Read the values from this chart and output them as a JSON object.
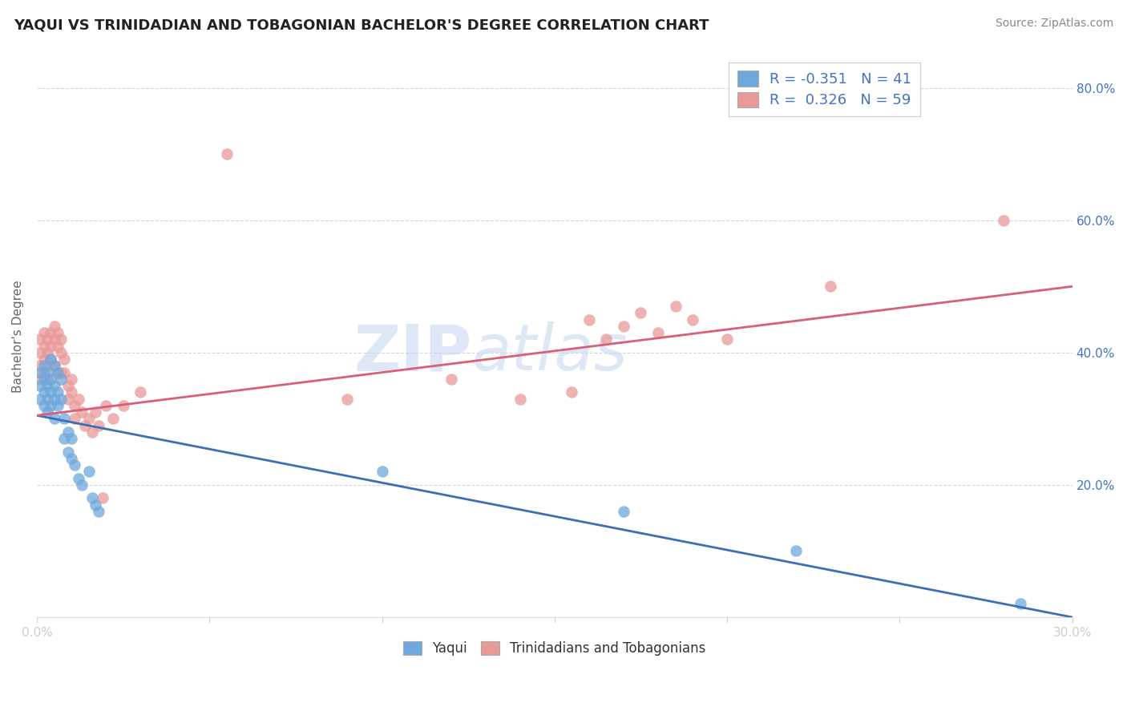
{
  "title": "YAQUI VS TRINIDADIAN AND TOBAGONIAN BACHELOR'S DEGREE CORRELATION CHART",
  "source": "Source: ZipAtlas.com",
  "ylabel": "Bachelor's Degree",
  "xlim": [
    0.0,
    0.3
  ],
  "ylim": [
    0.0,
    0.85
  ],
  "blue_R": -0.351,
  "blue_N": 41,
  "pink_R": 0.326,
  "pink_N": 59,
  "blue_color": "#6fa8dc",
  "pink_color": "#ea9999",
  "blue_line_color": "#3d6eb5",
  "pink_line_color": "#d95f7a",
  "legend_label_blue": "Yaqui",
  "legend_label_pink": "Trinidadians and Tobagonians",
  "background_color": "#ffffff",
  "grid_color": "#cccccc",
  "label_color": "#4472c4",
  "blue_x": [
    0.001,
    0.001,
    0.001,
    0.002,
    0.002,
    0.002,
    0.002,
    0.003,
    0.003,
    0.003,
    0.003,
    0.004,
    0.004,
    0.004,
    0.004,
    0.005,
    0.005,
    0.005,
    0.005,
    0.006,
    0.006,
    0.006,
    0.007,
    0.007,
    0.008,
    0.008,
    0.009,
    0.009,
    0.01,
    0.01,
    0.011,
    0.012,
    0.013,
    0.015,
    0.016,
    0.017,
    0.018,
    0.1,
    0.17,
    0.22,
    0.285
  ],
  "blue_y": [
    0.37,
    0.35,
    0.33,
    0.38,
    0.36,
    0.34,
    0.32,
    0.37,
    0.35,
    0.33,
    0.31,
    0.39,
    0.36,
    0.34,
    0.32,
    0.38,
    0.35,
    0.33,
    0.3,
    0.37,
    0.34,
    0.32,
    0.36,
    0.33,
    0.3,
    0.27,
    0.28,
    0.25,
    0.27,
    0.24,
    0.23,
    0.21,
    0.2,
    0.22,
    0.18,
    0.17,
    0.16,
    0.22,
    0.16,
    0.1,
    0.02
  ],
  "pink_x": [
    0.001,
    0.001,
    0.001,
    0.001,
    0.002,
    0.002,
    0.002,
    0.002,
    0.003,
    0.003,
    0.003,
    0.003,
    0.004,
    0.004,
    0.004,
    0.005,
    0.005,
    0.005,
    0.006,
    0.006,
    0.006,
    0.007,
    0.007,
    0.007,
    0.008,
    0.008,
    0.009,
    0.009,
    0.01,
    0.01,
    0.011,
    0.011,
    0.012,
    0.013,
    0.014,
    0.015,
    0.016,
    0.017,
    0.018,
    0.019,
    0.02,
    0.022,
    0.025,
    0.03,
    0.055,
    0.09,
    0.12,
    0.14,
    0.155,
    0.16,
    0.165,
    0.17,
    0.175,
    0.18,
    0.185,
    0.19,
    0.2,
    0.23,
    0.28
  ],
  "pink_y": [
    0.42,
    0.4,
    0.38,
    0.36,
    0.43,
    0.41,
    0.39,
    0.37,
    0.42,
    0.4,
    0.38,
    0.36,
    0.43,
    0.41,
    0.39,
    0.44,
    0.42,
    0.38,
    0.43,
    0.41,
    0.37,
    0.42,
    0.4,
    0.37,
    0.39,
    0.37,
    0.35,
    0.33,
    0.36,
    0.34,
    0.32,
    0.3,
    0.33,
    0.31,
    0.29,
    0.3,
    0.28,
    0.31,
    0.29,
    0.18,
    0.32,
    0.3,
    0.32,
    0.34,
    0.7,
    0.33,
    0.36,
    0.33,
    0.34,
    0.45,
    0.42,
    0.44,
    0.46,
    0.43,
    0.47,
    0.45,
    0.42,
    0.5,
    0.6
  ],
  "blue_trend_x": [
    0.0,
    0.3
  ],
  "blue_trend_y": [
    0.305,
    0.0
  ],
  "pink_trend_x": [
    0.0,
    0.3
  ],
  "pink_trend_y": [
    0.305,
    0.5
  ]
}
